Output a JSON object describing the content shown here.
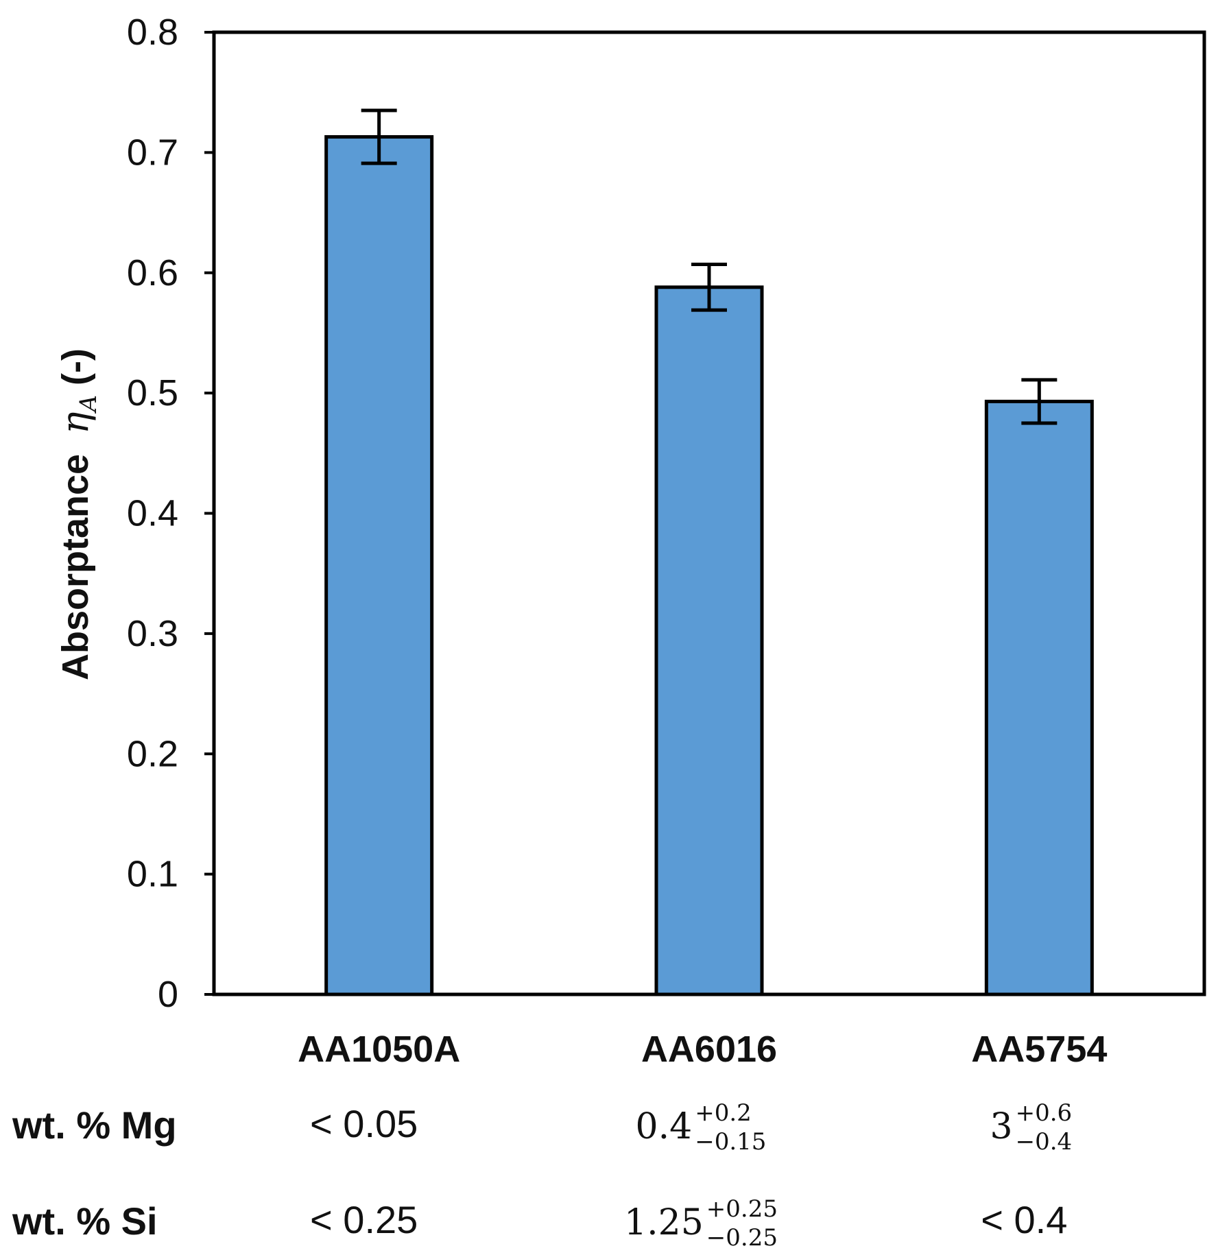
{
  "chart_data": {
    "type": "bar",
    "title": "",
    "xlabel": "",
    "ylabel": "Absorptance",
    "ylabel_symbol": "η",
    "ylabel_subscript": "A",
    "ylabel_unit": "(-)",
    "ylim": [
      0,
      0.8
    ],
    "yticks": [
      0,
      0.1,
      0.2,
      0.3,
      0.4,
      0.5,
      0.6,
      0.7,
      0.8
    ],
    "ytick_labels": [
      "0",
      "0.1",
      "0.2",
      "0.3",
      "0.4",
      "0.5",
      "0.6",
      "0.7",
      "0.8"
    ],
    "grid": false,
    "categories": [
      "AA1050A",
      "AA6016",
      "AA5754"
    ],
    "values": [
      0.713,
      0.588,
      0.493
    ],
    "error": [
      0.022,
      0.019,
      0.018
    ],
    "bar_color": "#5b9bd5",
    "edge_color": "#000000",
    "composition_table": {
      "rows": [
        {
          "label": "wt. % Mg",
          "cells": [
            {
              "text": "< 0.05"
            },
            {
              "base": "0.4",
              "sup": "+0.2",
              "sub": "−0.15"
            },
            {
              "base": "3",
              "sup": "+0.6",
              "sub": "−0.4"
            }
          ]
        },
        {
          "label": "wt. % Si",
          "cells": [
            {
              "text": "< 0.25"
            },
            {
              "base": "1.25",
              "sup": "+0.25",
              "sub": "−0.25"
            },
            {
              "text": "< 0.4"
            }
          ]
        }
      ]
    }
  }
}
